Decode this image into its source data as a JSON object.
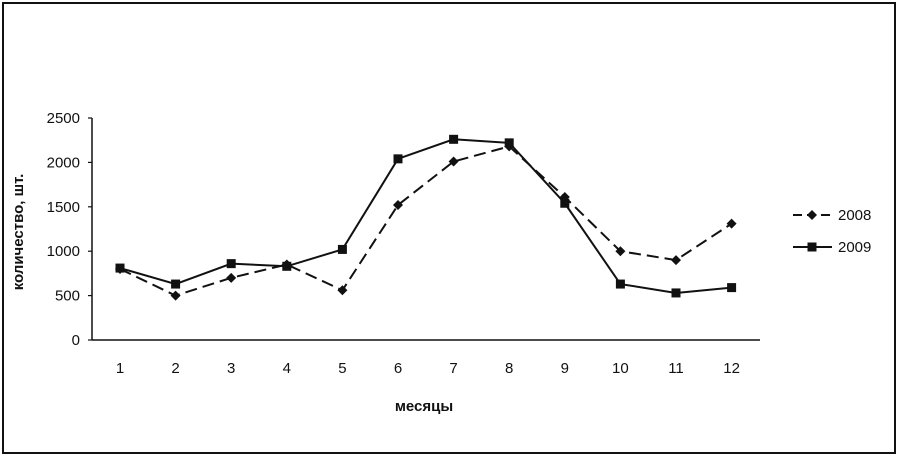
{
  "chart_data": {
    "type": "line",
    "xlabel": "месяцы",
    "ylabel": "количество, шт.",
    "categories": [
      "1",
      "2",
      "3",
      "4",
      "5",
      "6",
      "7",
      "8",
      "9",
      "10",
      "11",
      "12"
    ],
    "ylim": [
      0,
      2500
    ],
    "yticks": [
      "0",
      "500",
      "1000",
      "1500",
      "2000",
      "2500"
    ],
    "grid": false,
    "legend_position": "right",
    "series": [
      {
        "name": "2008",
        "line_style": "dashed",
        "marker": "diamond",
        "color": "#111111",
        "values": [
          800,
          500,
          700,
          850,
          560,
          1520,
          2010,
          2180,
          1610,
          1000,
          900,
          1310
        ]
      },
      {
        "name": "2009",
        "line_style": "solid",
        "marker": "square",
        "color": "#111111",
        "values": [
          810,
          630,
          860,
          830,
          1020,
          2040,
          2260,
          2220,
          1540,
          630,
          530,
          590
        ]
      }
    ]
  }
}
